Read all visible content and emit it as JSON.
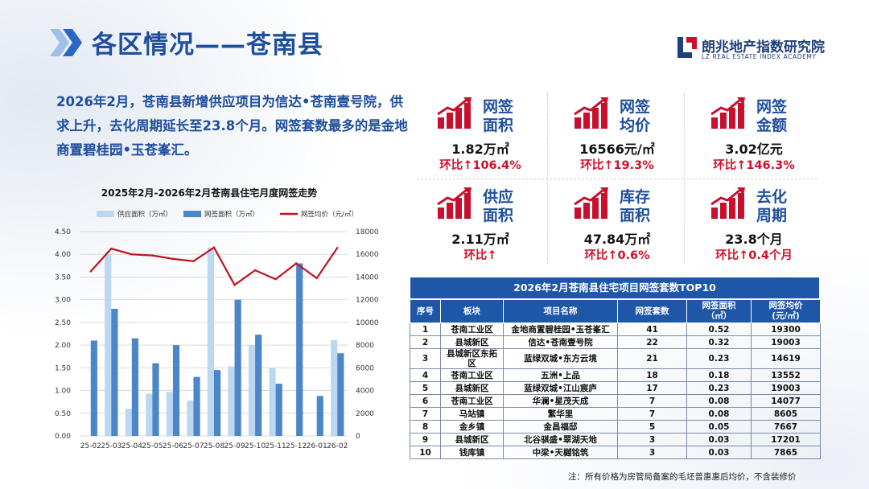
{
  "header": {
    "title": "各区情况——苍南县"
  },
  "logo": {
    "name": "朗兆地产指数研究院",
    "en": "LZ REAL ESTATE INDEX ACADEMY",
    "color": "#1f3f7a",
    "accent": "#c8102e"
  },
  "summary": "2026年2月，苍南县新增供应项目为信达•苍南壹号院，供求上升，去化周期延长至23.8个月。网签套数最多的是金地商置碧桂园•玉苍峯汇。",
  "kpis": [
    {
      "label": "网签面积",
      "value": "1.82万㎡",
      "change": "环比↑106.4%"
    },
    {
      "label": "网签均价",
      "value": "16566元/㎡",
      "change": "环比↑19.3%"
    },
    {
      "label": "网签金额",
      "value": "3.02亿元",
      "change": "环比↑146.3%"
    },
    {
      "label": "供应面积",
      "value": "2.11万㎡",
      "change": "环比↑"
    },
    {
      "label": "库存面积",
      "value": "47.84万㎡",
      "change": "环比↑0.6%"
    },
    {
      "label": "去化周期",
      "value": "23.8个月",
      "change": "环比↑0.4个月"
    }
  ],
  "chart_data": {
    "type": "bar",
    "title": "2025年2月-2026年2月苍南县住宅月度网签走势",
    "categories": [
      "25-02",
      "25-03",
      "25-04",
      "25-05",
      "25-06",
      "25-07",
      "25-08",
      "25-09",
      "25-10",
      "25-11",
      "25-12",
      "26-01",
      "26-02"
    ],
    "series": [
      {
        "name": "供应面积（万㎡）",
        "type": "bar",
        "axis": "left",
        "color": "#bcd7f0",
        "values": [
          0,
          4.0,
          0.6,
          0.93,
          0.97,
          0.78,
          4.15,
          1.53,
          2.0,
          1.5,
          0,
          0,
          2.11
        ]
      },
      {
        "name": "网签面积（万㎡）",
        "type": "bar",
        "axis": "left",
        "color": "#4a86c8",
        "values": [
          2.1,
          2.8,
          2.15,
          1.6,
          2.0,
          1.3,
          1.45,
          3.0,
          2.23,
          1.15,
          3.8,
          0.88,
          1.82
        ]
      },
      {
        "name": "网签均价（元/㎡）",
        "type": "line",
        "axis": "right",
        "color": "#c0141e",
        "values": [
          14500,
          16500,
          16000,
          15900,
          15600,
          15400,
          16600,
          13300,
          14600,
          13800,
          15200,
          13900,
          16566
        ]
      }
    ],
    "ylim": [
      0,
      4.5
    ],
    "y_ticks": [
      "0.00",
      "0.50",
      "1.00",
      "1.50",
      "2.00",
      "2.50",
      "3.00",
      "3.50",
      "4.00",
      "4.50"
    ],
    "y2lim": [
      0,
      18000
    ],
    "y2_ticks": [
      "0",
      "2000",
      "4000",
      "6000",
      "8000",
      "10000",
      "12000",
      "14000",
      "16000",
      "18000"
    ],
    "grid": true,
    "legend": "top"
  },
  "table": {
    "caption": "2026年2月苍南县住宅项目网签套数TOP10",
    "headers": [
      "序号",
      "板块",
      "项目名称",
      "网签套数",
      "网签面积\n（㎡）",
      "网签均价\n(元/㎡)"
    ],
    "rows": [
      [
        "1",
        "苍南工业区",
        "金地商置碧桂园•玉苍峯汇",
        "41",
        "0.52",
        "19300"
      ],
      [
        "2",
        "县城新区",
        "信达•苍南壹号院",
        "22",
        "0.32",
        "19003"
      ],
      [
        "3",
        "县城新区东拓区",
        "蓝绿双城•东方云境",
        "21",
        "0.23",
        "14619"
      ],
      [
        "4",
        "苍南工业区",
        "五洲•上品",
        "18",
        "0.18",
        "13552"
      ],
      [
        "5",
        "县城新区",
        "蓝绿双城•江山宸庐",
        "17",
        "0.23",
        "19003"
      ],
      [
        "6",
        "苍南工业区",
        "华澜•星茂天成",
        "7",
        "0.08",
        "14077"
      ],
      [
        "7",
        "马站镇",
        "繁华里",
        "7",
        "0.08",
        "8605"
      ],
      [
        "8",
        "金乡镇",
        "金昌福邸",
        "5",
        "0.05",
        "7667"
      ],
      [
        "9",
        "县城新区",
        "北谷骐盛•翠湖天地",
        "3",
        "0.03",
        "17201"
      ],
      [
        "10",
        "钱库镇",
        "中梁•天樾铭筑",
        "3",
        "0.03",
        "7865"
      ]
    ]
  },
  "note": "注：所有价格为房管局备案的毛坯普惠惠后均价，不含装修价",
  "colors": {
    "title": "#1f4e9c",
    "accent_red": "#d0102a",
    "table_header": "#1e56a8"
  }
}
